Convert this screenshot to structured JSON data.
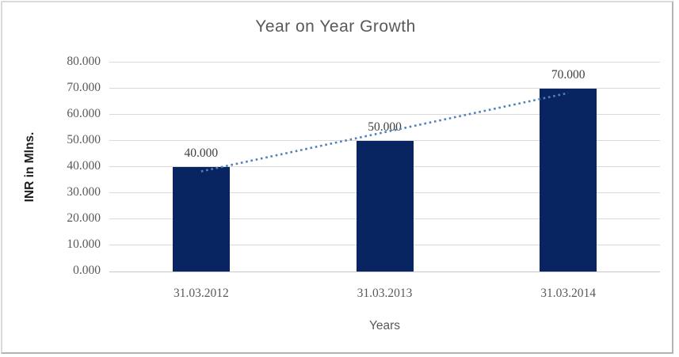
{
  "chart_data": {
    "type": "bar",
    "title": "Year on Year Growth",
    "categories": [
      "31.03.2012",
      "31.03.2013",
      "31.03.2014"
    ],
    "values": [
      40,
      50,
      70
    ],
    "value_labels": [
      "40.000",
      "50.000",
      "70.000"
    ],
    "xlabel": "Years",
    "ylabel": "INR in Mlns.",
    "ylim": [
      0,
      80
    ],
    "ytick_labels": [
      "0.000",
      "10.000",
      "20.000",
      "30.000",
      "40.000",
      "50.000",
      "60.000",
      "70.000",
      "80.000"
    ],
    "grid": true,
    "legend": false,
    "trendline": {
      "type": "linear",
      "style": "dotted",
      "color": "#4f81bd"
    },
    "colors": {
      "bar": "#082562",
      "grid": "#d9d9d9",
      "axis_line": "#c6c6c6",
      "title_text": "#595959",
      "tick_text": "#595959",
      "data_label_text": "#404040",
      "axis_title_text": "#595959",
      "y_axis_title_text": "#1f1f1f"
    }
  }
}
